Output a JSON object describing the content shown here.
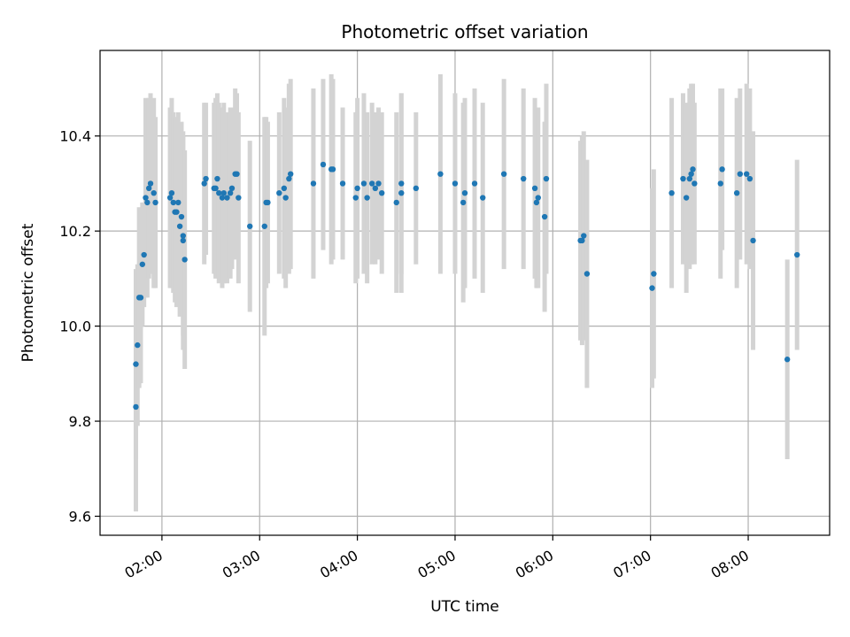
{
  "chart_data": {
    "type": "scatter",
    "title": "Photometric offset variation",
    "xlabel": "UTC time",
    "ylabel": "Photometric offset",
    "xlim": [
      "01:22",
      "08:50"
    ],
    "ylim": [
      9.56,
      10.58
    ],
    "x_ticks": [
      "02:00",
      "03:00",
      "04:00",
      "05:00",
      "06:00",
      "07:00",
      "08:00"
    ],
    "y_ticks": [
      "9.6",
      "9.8",
      "10.0",
      "10.2",
      "10.4"
    ],
    "grid": true,
    "legend": "none",
    "colors": {
      "point": "#1f77b4",
      "errorbar": "#d3d3d3",
      "grid": "#b0b0b0"
    },
    "points": [
      {
        "x": "01:44",
        "y": 9.83,
        "err": 0.22
      },
      {
        "x": "01:44",
        "y": 9.92,
        "err": 0.2
      },
      {
        "x": "01:45",
        "y": 9.96,
        "err": 0.17
      },
      {
        "x": "01:46",
        "y": 10.06,
        "err": 0.19
      },
      {
        "x": "01:47",
        "y": 10.06,
        "err": 0.18
      },
      {
        "x": "01:48",
        "y": 10.13,
        "err": 0.13
      },
      {
        "x": "01:49",
        "y": 10.15,
        "err": 0.11
      },
      {
        "x": "01:50",
        "y": 10.27,
        "err": 0.21
      },
      {
        "x": "01:51",
        "y": 10.26,
        "err": 0.2
      },
      {
        "x": "01:52",
        "y": 10.29,
        "err": 0.19
      },
      {
        "x": "01:53",
        "y": 10.3,
        "err": 0.19
      },
      {
        "x": "01:55",
        "y": 10.28,
        "err": 0.2
      },
      {
        "x": "01:56",
        "y": 10.26,
        "err": 0.18
      },
      {
        "x": "02:05",
        "y": 10.27,
        "err": 0.19
      },
      {
        "x": "02:06",
        "y": 10.28,
        "err": 0.2
      },
      {
        "x": "02:07",
        "y": 10.26,
        "err": 0.19
      },
      {
        "x": "02:08",
        "y": 10.24,
        "err": 0.19
      },
      {
        "x": "02:09",
        "y": 10.24,
        "err": 0.2
      },
      {
        "x": "02:10",
        "y": 10.26,
        "err": 0.19
      },
      {
        "x": "02:11",
        "y": 10.21,
        "err": 0.19
      },
      {
        "x": "02:12",
        "y": 10.23,
        "err": 0.2
      },
      {
        "x": "02:13",
        "y": 10.19,
        "err": 0.21
      },
      {
        "x": "02:13",
        "y": 10.18,
        "err": 0.23
      },
      {
        "x": "02:14",
        "y": 10.14,
        "err": 0.23
      },
      {
        "x": "02:26",
        "y": 10.3,
        "err": 0.17
      },
      {
        "x": "02:27",
        "y": 10.31,
        "err": 0.16
      },
      {
        "x": "02:32",
        "y": 10.29,
        "err": 0.18
      },
      {
        "x": "02:33",
        "y": 10.29,
        "err": 0.19
      },
      {
        "x": "02:34",
        "y": 10.31,
        "err": 0.18
      },
      {
        "x": "02:35",
        "y": 10.28,
        "err": 0.19
      },
      {
        "x": "02:37",
        "y": 10.27,
        "err": 0.19
      },
      {
        "x": "02:38",
        "y": 10.28,
        "err": 0.19
      },
      {
        "x": "02:40",
        "y": 10.27,
        "err": 0.18
      },
      {
        "x": "02:42",
        "y": 10.28,
        "err": 0.18
      },
      {
        "x": "02:43",
        "y": 10.29,
        "err": 0.17
      },
      {
        "x": "02:45",
        "y": 10.32,
        "err": 0.18
      },
      {
        "x": "02:46",
        "y": 10.32,
        "err": 0.17
      },
      {
        "x": "02:47",
        "y": 10.27,
        "err": 0.18
      },
      {
        "x": "02:54",
        "y": 10.21,
        "err": 0.18
      },
      {
        "x": "03:03",
        "y": 10.21,
        "err": 0.23
      },
      {
        "x": "03:04",
        "y": 10.26,
        "err": 0.18
      },
      {
        "x": "03:05",
        "y": 10.26,
        "err": 0.17
      },
      {
        "x": "03:12",
        "y": 10.28,
        "err": 0.17
      },
      {
        "x": "03:15",
        "y": 10.29,
        "err": 0.19
      },
      {
        "x": "03:16",
        "y": 10.27,
        "err": 0.19
      },
      {
        "x": "03:18",
        "y": 10.31,
        "err": 0.2
      },
      {
        "x": "03:19",
        "y": 10.32,
        "err": 0.2
      },
      {
        "x": "03:33",
        "y": 10.3,
        "err": 0.2
      },
      {
        "x": "03:39",
        "y": 10.34,
        "err": 0.18
      },
      {
        "x": "03:44",
        "y": 10.33,
        "err": 0.2
      },
      {
        "x": "03:45",
        "y": 10.33,
        "err": 0.19
      },
      {
        "x": "03:51",
        "y": 10.3,
        "err": 0.16
      },
      {
        "x": "03:59",
        "y": 10.27,
        "err": 0.18
      },
      {
        "x": "04:00",
        "y": 10.29,
        "err": 0.19
      },
      {
        "x": "04:04",
        "y": 10.3,
        "err": 0.19
      },
      {
        "x": "04:06",
        "y": 10.27,
        "err": 0.18
      },
      {
        "x": "04:09",
        "y": 10.3,
        "err": 0.17
      },
      {
        "x": "04:11",
        "y": 10.29,
        "err": 0.16
      },
      {
        "x": "04:13",
        "y": 10.3,
        "err": 0.16
      },
      {
        "x": "04:15",
        "y": 10.28,
        "err": 0.17
      },
      {
        "x": "04:24",
        "y": 10.26,
        "err": 0.19
      },
      {
        "x": "04:27",
        "y": 10.28,
        "err": 0.21
      },
      {
        "x": "04:27",
        "y": 10.3,
        "err": 0.19
      },
      {
        "x": "04:36",
        "y": 10.29,
        "err": 0.16
      },
      {
        "x": "04:51",
        "y": 10.32,
        "err": 0.21
      },
      {
        "x": "05:00",
        "y": 10.3,
        "err": 0.19
      },
      {
        "x": "05:05",
        "y": 10.26,
        "err": 0.21
      },
      {
        "x": "05:06",
        "y": 10.28,
        "err": 0.2
      },
      {
        "x": "05:12",
        "y": 10.3,
        "err": 0.2
      },
      {
        "x": "05:17",
        "y": 10.27,
        "err": 0.2
      },
      {
        "x": "05:30",
        "y": 10.32,
        "err": 0.2
      },
      {
        "x": "05:42",
        "y": 10.31,
        "err": 0.19
      },
      {
        "x": "05:49",
        "y": 10.29,
        "err": 0.19
      },
      {
        "x": "05:50",
        "y": 10.26,
        "err": 0.18
      },
      {
        "x": "05:51",
        "y": 10.27,
        "err": 0.19
      },
      {
        "x": "05:55",
        "y": 10.23,
        "err": 0.2
      },
      {
        "x": "05:56",
        "y": 10.31,
        "err": 0.2
      },
      {
        "x": "06:17",
        "y": 10.18,
        "err": 0.21
      },
      {
        "x": "06:18",
        "y": 10.18,
        "err": 0.22
      },
      {
        "x": "06:19",
        "y": 10.19,
        "err": 0.22
      },
      {
        "x": "06:21",
        "y": 10.11,
        "err": 0.24
      },
      {
        "x": "07:01",
        "y": 10.08,
        "err": 0.21
      },
      {
        "x": "07:02",
        "y": 10.11,
        "err": 0.22
      },
      {
        "x": "07:13",
        "y": 10.28,
        "err": 0.2
      },
      {
        "x": "07:20",
        "y": 10.31,
        "err": 0.18
      },
      {
        "x": "07:22",
        "y": 10.27,
        "err": 0.2
      },
      {
        "x": "07:24",
        "y": 10.31,
        "err": 0.19
      },
      {
        "x": "07:25",
        "y": 10.32,
        "err": 0.19
      },
      {
        "x": "07:26",
        "y": 10.33,
        "err": 0.18
      },
      {
        "x": "07:27",
        "y": 10.3,
        "err": 0.17
      },
      {
        "x": "07:43",
        "y": 10.3,
        "err": 0.2
      },
      {
        "x": "07:44",
        "y": 10.33,
        "err": 0.17
      },
      {
        "x": "07:53",
        "y": 10.28,
        "err": 0.2
      },
      {
        "x": "07:55",
        "y": 10.32,
        "err": 0.18
      },
      {
        "x": "07:59",
        "y": 10.32,
        "err": 0.19
      },
      {
        "x": "08:01",
        "y": 10.31,
        "err": 0.19
      },
      {
        "x": "08:03",
        "y": 10.18,
        "err": 0.23
      },
      {
        "x": "08:24",
        "y": 9.93,
        "err": 0.21
      },
      {
        "x": "08:30",
        "y": 10.15,
        "err": 0.2
      }
    ]
  }
}
